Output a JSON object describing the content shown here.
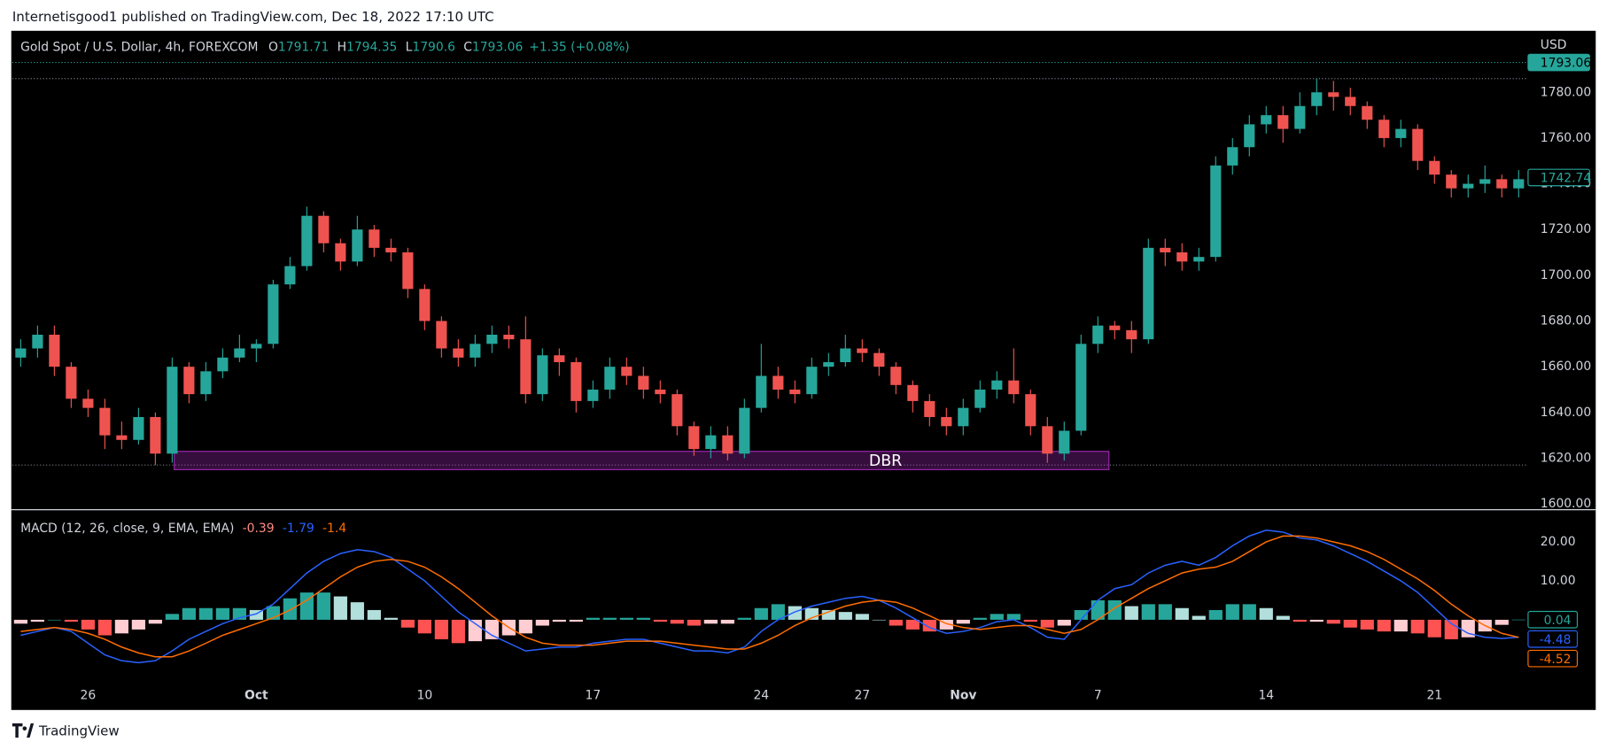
{
  "header": {
    "publisher": "Internetisgood1 published on TradingView.com, Dec 18, 2022 17:10 UTC",
    "footer": "TradingView"
  },
  "chart_data": [
    {
      "type": "candlestick",
      "title": "Gold Spot / U.S. Dollar, 4h, FOREXCOM",
      "ohlc_legend": [
        {
          "key": "O",
          "value": 1791.71
        },
        {
          "key": "H",
          "value": 1794.35
        },
        {
          "key": "L",
          "value": 1790.6
        },
        {
          "key": "C",
          "value": 1793.06
        }
      ],
      "change": "+1.35 (+0.08%)",
      "currency": "USD",
      "up_color": "#26a69a",
      "down_color": "#ef5350",
      "grid": false,
      "categories": [
        null,
        null,
        null,
        null,
        "26",
        null,
        null,
        null,
        null,
        null,
        null,
        null,
        null,
        null,
        "Oct",
        null,
        null,
        null,
        null,
        null,
        null,
        null,
        null,
        null,
        "10",
        null,
        null,
        null,
        null,
        null,
        null,
        null,
        null,
        null,
        "17",
        null,
        null,
        null,
        null,
        null,
        null,
        null,
        null,
        null,
        "24",
        null,
        null,
        null,
        null,
        null,
        "27",
        null,
        null,
        null,
        null,
        null,
        "Nov",
        null,
        null,
        null,
        null,
        null,
        null,
        null,
        "7",
        null,
        null,
        null,
        null,
        null,
        null,
        null,
        null,
        null,
        "14",
        null,
        null,
        null,
        null,
        null,
        null,
        null,
        null,
        null,
        "21",
        null,
        null,
        null,
        null,
        null
      ],
      "open": [
        1664,
        1668,
        1674,
        1660,
        1646,
        1642,
        1630,
        1628,
        1638,
        1622,
        1660,
        1648,
        1658,
        1664,
        1668,
        1670,
        1696,
        1704,
        1726,
        1714,
        1706,
        1720,
        1712,
        1710,
        1694,
        1680,
        1668,
        1664,
        1670,
        1674,
        1672,
        1648,
        1665,
        1662,
        1645,
        1650,
        1660,
        1656,
        1650,
        1648,
        1634,
        1624,
        1630,
        1622,
        1642,
        1656,
        1650,
        1648,
        1660,
        1662,
        1668,
        1666,
        1660,
        1652,
        1645,
        1638,
        1634,
        1642,
        1650,
        1654,
        1648,
        1634,
        1622,
        1632,
        1670,
        1678,
        1676,
        1672,
        1712,
        1710,
        1706,
        1708,
        1748,
        1756,
        1766,
        1770,
        1764,
        1774,
        1780,
        1778,
        1774,
        1768,
        1760,
        1764,
        1750,
        1744,
        1738,
        1740,
        1742,
        1738
      ],
      "high": [
        1672,
        1678,
        1678,
        1662,
        1650,
        1646,
        1636,
        1642,
        1640,
        1664,
        1662,
        1662,
        1668,
        1674,
        1672,
        1698,
        1708,
        1730,
        1728,
        1716,
        1726,
        1722,
        1716,
        1712,
        1696,
        1682,
        1672,
        1674,
        1678,
        1678,
        1682,
        1668,
        1668,
        1664,
        1654,
        1664,
        1664,
        1660,
        1654,
        1650,
        1636,
        1634,
        1634,
        1646,
        1670,
        1660,
        1654,
        1664,
        1666,
        1674,
        1672,
        1668,
        1662,
        1654,
        1648,
        1642,
        1646,
        1654,
        1658,
        1668,
        1650,
        1638,
        1636,
        1674,
        1682,
        1680,
        1680,
        1716,
        1716,
        1714,
        1712,
        1752,
        1760,
        1770,
        1774,
        1774,
        1780,
        1786,
        1785,
        1782,
        1776,
        1770,
        1768,
        1766,
        1752,
        1746,
        1744,
        1748,
        1744,
        1746
      ],
      "low": [
        1660,
        1664,
        1656,
        1642,
        1638,
        1624,
        1624,
        1626,
        1617,
        1618,
        1644,
        1645,
        1655,
        1662,
        1662,
        1668,
        1694,
        1702,
        1710,
        1702,
        1704,
        1708,
        1706,
        1690,
        1676,
        1664,
        1660,
        1660,
        1666,
        1668,
        1644,
        1645,
        1656,
        1640,
        1642,
        1646,
        1652,
        1646,
        1644,
        1630,
        1621,
        1620,
        1619,
        1620,
        1640,
        1646,
        1644,
        1646,
        1656,
        1660,
        1662,
        1656,
        1648,
        1640,
        1634,
        1630,
        1630,
        1640,
        1646,
        1644,
        1630,
        1618,
        1619,
        1630,
        1666,
        1672,
        1666,
        1670,
        1704,
        1702,
        1702,
        1706,
        1744,
        1752,
        1762,
        1758,
        1762,
        1770,
        1772,
        1770,
        1764,
        1756,
        1756,
        1746,
        1740,
        1734,
        1734,
        1736,
        1734,
        1734
      ],
      "close": [
        1668,
        1674,
        1660,
        1646,
        1642,
        1630,
        1628,
        1638,
        1622,
        1660,
        1648,
        1658,
        1664,
        1668,
        1670,
        1696,
        1704,
        1726,
        1714,
        1706,
        1720,
        1712,
        1710,
        1694,
        1680,
        1668,
        1664,
        1670,
        1674,
        1672,
        1648,
        1665,
        1662,
        1645,
        1650,
        1660,
        1656,
        1650,
        1648,
        1634,
        1624,
        1630,
        1622,
        1642,
        1656,
        1650,
        1648,
        1660,
        1662,
        1668,
        1666,
        1660,
        1652,
        1645,
        1638,
        1634,
        1642,
        1650,
        1654,
        1648,
        1634,
        1622,
        1632,
        1670,
        1678,
        1676,
        1672,
        1712,
        1710,
        1706,
        1708,
        1748,
        1756,
        1766,
        1770,
        1764,
        1774,
        1780,
        1778,
        1774,
        1768,
        1760,
        1764,
        1750,
        1744,
        1738,
        1740,
        1742,
        1738,
        1742
      ],
      "ylim": [
        1597.7,
        1806.9
      ],
      "yticks": [
        {
          "value": 1600,
          "label": "1600.00"
        },
        {
          "value": 1620,
          "label": "1620.00"
        },
        {
          "value": 1640,
          "label": "1640.00"
        },
        {
          "value": 1660,
          "label": "1660.00"
        },
        {
          "value": 1680,
          "label": "1680.00"
        },
        {
          "value": 1700,
          "label": "1700.00"
        },
        {
          "value": 1720,
          "label": "1720.00"
        },
        {
          "value": 1740,
          "label": "1740.00"
        },
        {
          "value": 1760,
          "label": "1760.00"
        },
        {
          "value": 1780,
          "label": "1780.00"
        }
      ],
      "tags": [
        {
          "value": 1793.06,
          "color": "#26a69a",
          "filled": true
        },
        {
          "value": 1742.74,
          "color": "#26a69a",
          "filled": false
        }
      ],
      "zone": {
        "label": "DBR",
        "low": 1615,
        "high": 1623,
        "color": "#9c27b0"
      }
    },
    {
      "type": "macd",
      "title": "MACD (12, 26, close, 9, EMA, EMA)",
      "legend_values": [
        {
          "value": -0.39,
          "color": "#ff8a80"
        },
        {
          "value": -1.79,
          "color": "#2962ff"
        },
        {
          "value": -1.4,
          "color": "#ff6d00"
        }
      ],
      "histogram_colors": [
        "#26a69a",
        "#b2dfdb",
        "#ff5252",
        "#ffcdd2"
      ],
      "histogram": [
        -1,
        -0.5,
        0,
        -0.5,
        -2.5,
        -4,
        -3.5,
        -2.5,
        -1,
        1.5,
        3,
        3,
        3,
        3,
        2.5,
        3.5,
        5.5,
        7,
        7,
        6,
        4.5,
        2.5,
        0.5,
        -2,
        -3.5,
        -5,
        -6,
        -5.5,
        -5,
        -4,
        -3.5,
        -1.5,
        -0.5,
        -0.5,
        0.5,
        0.5,
        0.5,
        0.5,
        -0.5,
        -1,
        -1.5,
        -1,
        -1,
        0.5,
        3,
        4,
        3.5,
        3,
        2.5,
        2,
        1.5,
        0,
        -1.5,
        -2.5,
        -3,
        -2.5,
        -1,
        0.5,
        1.5,
        1.5,
        -0.5,
        -2,
        -1.5,
        2.5,
        5,
        5,
        3.5,
        4,
        4,
        3,
        1,
        2.5,
        4,
        4,
        3,
        1,
        -0.5,
        -0.5,
        -1,
        -2,
        -2.5,
        -3,
        -3,
        -3.5,
        -4.5,
        -5,
        -4.5,
        -3,
        -1.3,
        0.04
      ],
      "series": [
        {
          "color": "#2962ff",
          "values": [
            -4,
            -3,
            -2,
            -3,
            -6,
            -9,
            -10.5,
            -11,
            -10.5,
            -8,
            -5,
            -3,
            -1,
            0.5,
            1.5,
            4,
            8,
            12,
            15,
            17,
            18,
            17.5,
            16,
            13,
            10,
            6,
            2,
            -1,
            -4,
            -6,
            -8,
            -7.5,
            -7,
            -7,
            -6,
            -5.5,
            -5,
            -5,
            -6,
            -7,
            -8,
            -8,
            -8.5,
            -7,
            -3,
            0,
            2,
            3.5,
            4.5,
            5.5,
            6,
            5,
            3,
            0.5,
            -2,
            -3.5,
            -3,
            -2,
            -0.5,
            0,
            -2,
            -4.5,
            -5,
            0,
            5,
            8,
            9,
            12,
            14,
            15,
            14,
            16,
            19,
            21.5,
            23,
            22.5,
            21,
            20.5,
            19,
            17,
            15,
            12.5,
            10,
            7,
            3,
            -1,
            -3.5,
            -4.5,
            -4.8,
            -4.48
          ]
        },
        {
          "color": "#ff6d00",
          "values": [
            -3,
            -2.5,
            -2,
            -2.5,
            -3.5,
            -5,
            -7,
            -8.5,
            -9.5,
            -9.5,
            -8,
            -6,
            -4,
            -2.5,
            -1,
            0.5,
            2.5,
            5,
            8,
            11,
            13.5,
            15,
            15.5,
            15,
            13.5,
            11,
            8,
            4.5,
            1,
            -2,
            -4.5,
            -6,
            -6.5,
            -6.5,
            -6.5,
            -6,
            -5.5,
            -5.5,
            -5.5,
            -6,
            -6.5,
            -7,
            -7.5,
            -7.5,
            -6,
            -4,
            -1.5,
            0.5,
            2,
            3.5,
            4.5,
            5,
            4.5,
            3,
            1,
            -1,
            -2,
            -2.5,
            -2,
            -1.5,
            -1.5,
            -2.5,
            -3.5,
            -2.5,
            0,
            3,
            5.5,
            8,
            10,
            12,
            13,
            13.5,
            15,
            17.5,
            20,
            21.5,
            21.5,
            21,
            20,
            19,
            17.5,
            15.5,
            13,
            10.5,
            7.5,
            4,
            1,
            -1.5,
            -3.5,
            -4.52
          ]
        }
      ],
      "ylim": [
        -15.8,
        28.4
      ],
      "yticks": [
        {
          "value": 10,
          "label": "10.00"
        },
        {
          "value": 20,
          "label": "20.00"
        }
      ],
      "tags": [
        {
          "value": 0.04,
          "color": "#26a69a"
        },
        {
          "value": -4.48,
          "color": "#2962ff"
        },
        {
          "value": -4.52,
          "color": "#ff6d00"
        }
      ]
    }
  ]
}
